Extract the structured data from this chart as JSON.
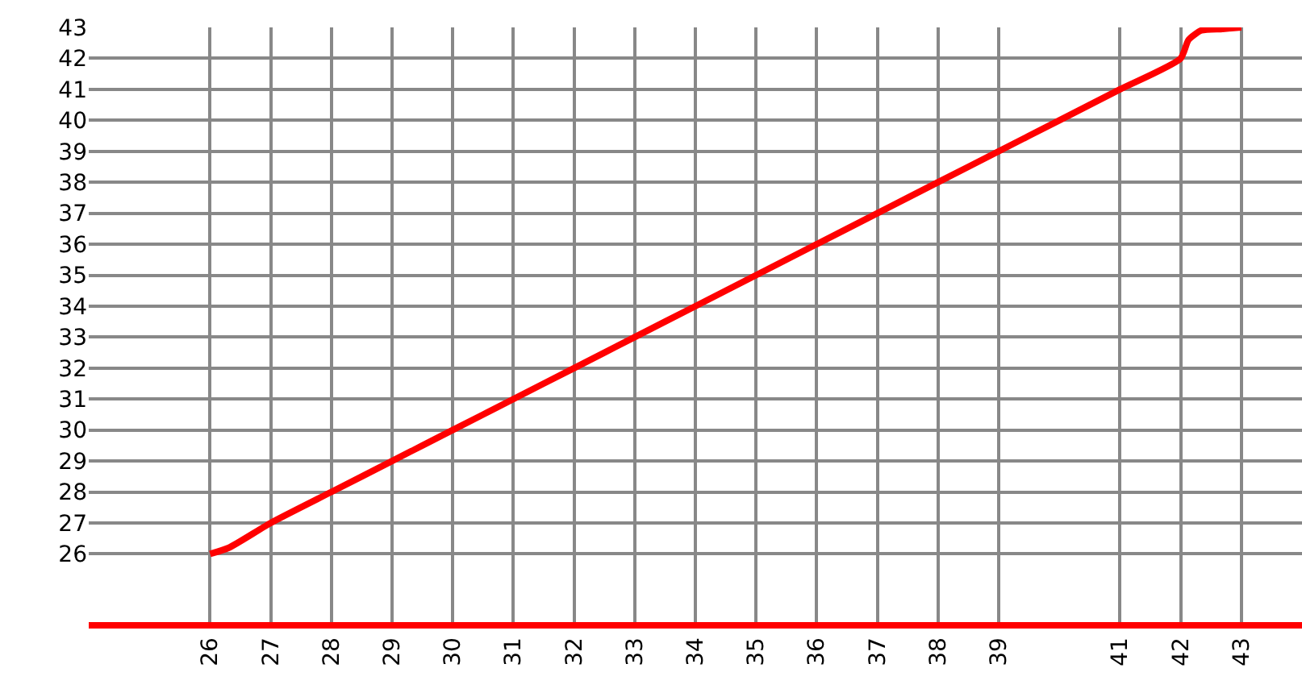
{
  "chart_data": {
    "type": "line",
    "grid": true,
    "marker": "none",
    "line_style": "solid",
    "xlim": [
      24,
      44
    ],
    "ylim": [
      23.8,
      43
    ],
    "xticks": [
      26,
      27,
      28,
      29,
      30,
      31,
      32,
      33,
      34,
      35,
      36,
      37,
      38,
      39,
      41,
      42,
      43
    ],
    "yticks": [
      26,
      27,
      28,
      29,
      30,
      31,
      32,
      33,
      34,
      35,
      36,
      37,
      38,
      39,
      40,
      41,
      42,
      43
    ],
    "series": [
      {
        "color": "#ff0000",
        "x": [
          26,
          26.31,
          27,
          28,
          29,
          30,
          31,
          32,
          33,
          34,
          35,
          36,
          37,
          38,
          39,
          40,
          41,
          42,
          42.13,
          42.34,
          42.69,
          43
        ],
        "values": [
          26,
          26.2,
          27,
          28,
          29,
          30,
          31,
          32,
          33,
          34,
          35,
          36,
          37,
          38,
          39,
          40,
          41,
          42,
          42.6,
          42.9,
          42.95,
          43
        ]
      }
    ]
  }
}
